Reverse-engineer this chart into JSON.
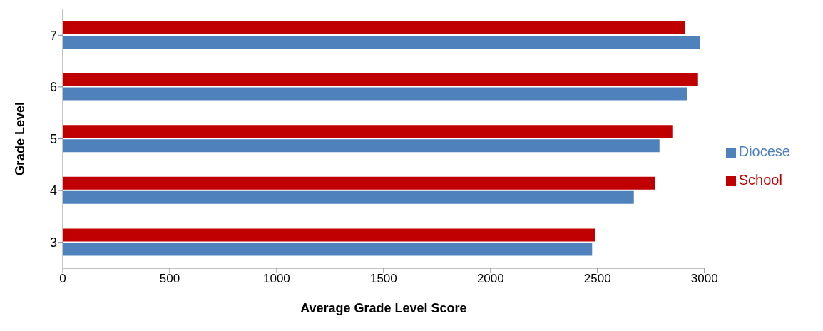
{
  "chart_data": {
    "type": "bar",
    "orientation": "horizontal",
    "xlabel": "Average Grade Level Score",
    "ylabel": "Grade Level",
    "categories": [
      "7",
      "6",
      "5",
      "4",
      "3"
    ],
    "series": [
      {
        "name": "School",
        "color": "#c00000",
        "values": [
          2910,
          2970,
          2850,
          2770,
          2490
        ]
      },
      {
        "name": "Diocese",
        "color": "#4f81bd",
        "values": [
          2980,
          2920,
          2790,
          2670,
          2475
        ]
      }
    ],
    "xlim": [
      0,
      3000
    ],
    "xticks": [
      0,
      500,
      1000,
      1500,
      2000,
      2500,
      3000
    ],
    "grid": false,
    "legend": "right"
  }
}
